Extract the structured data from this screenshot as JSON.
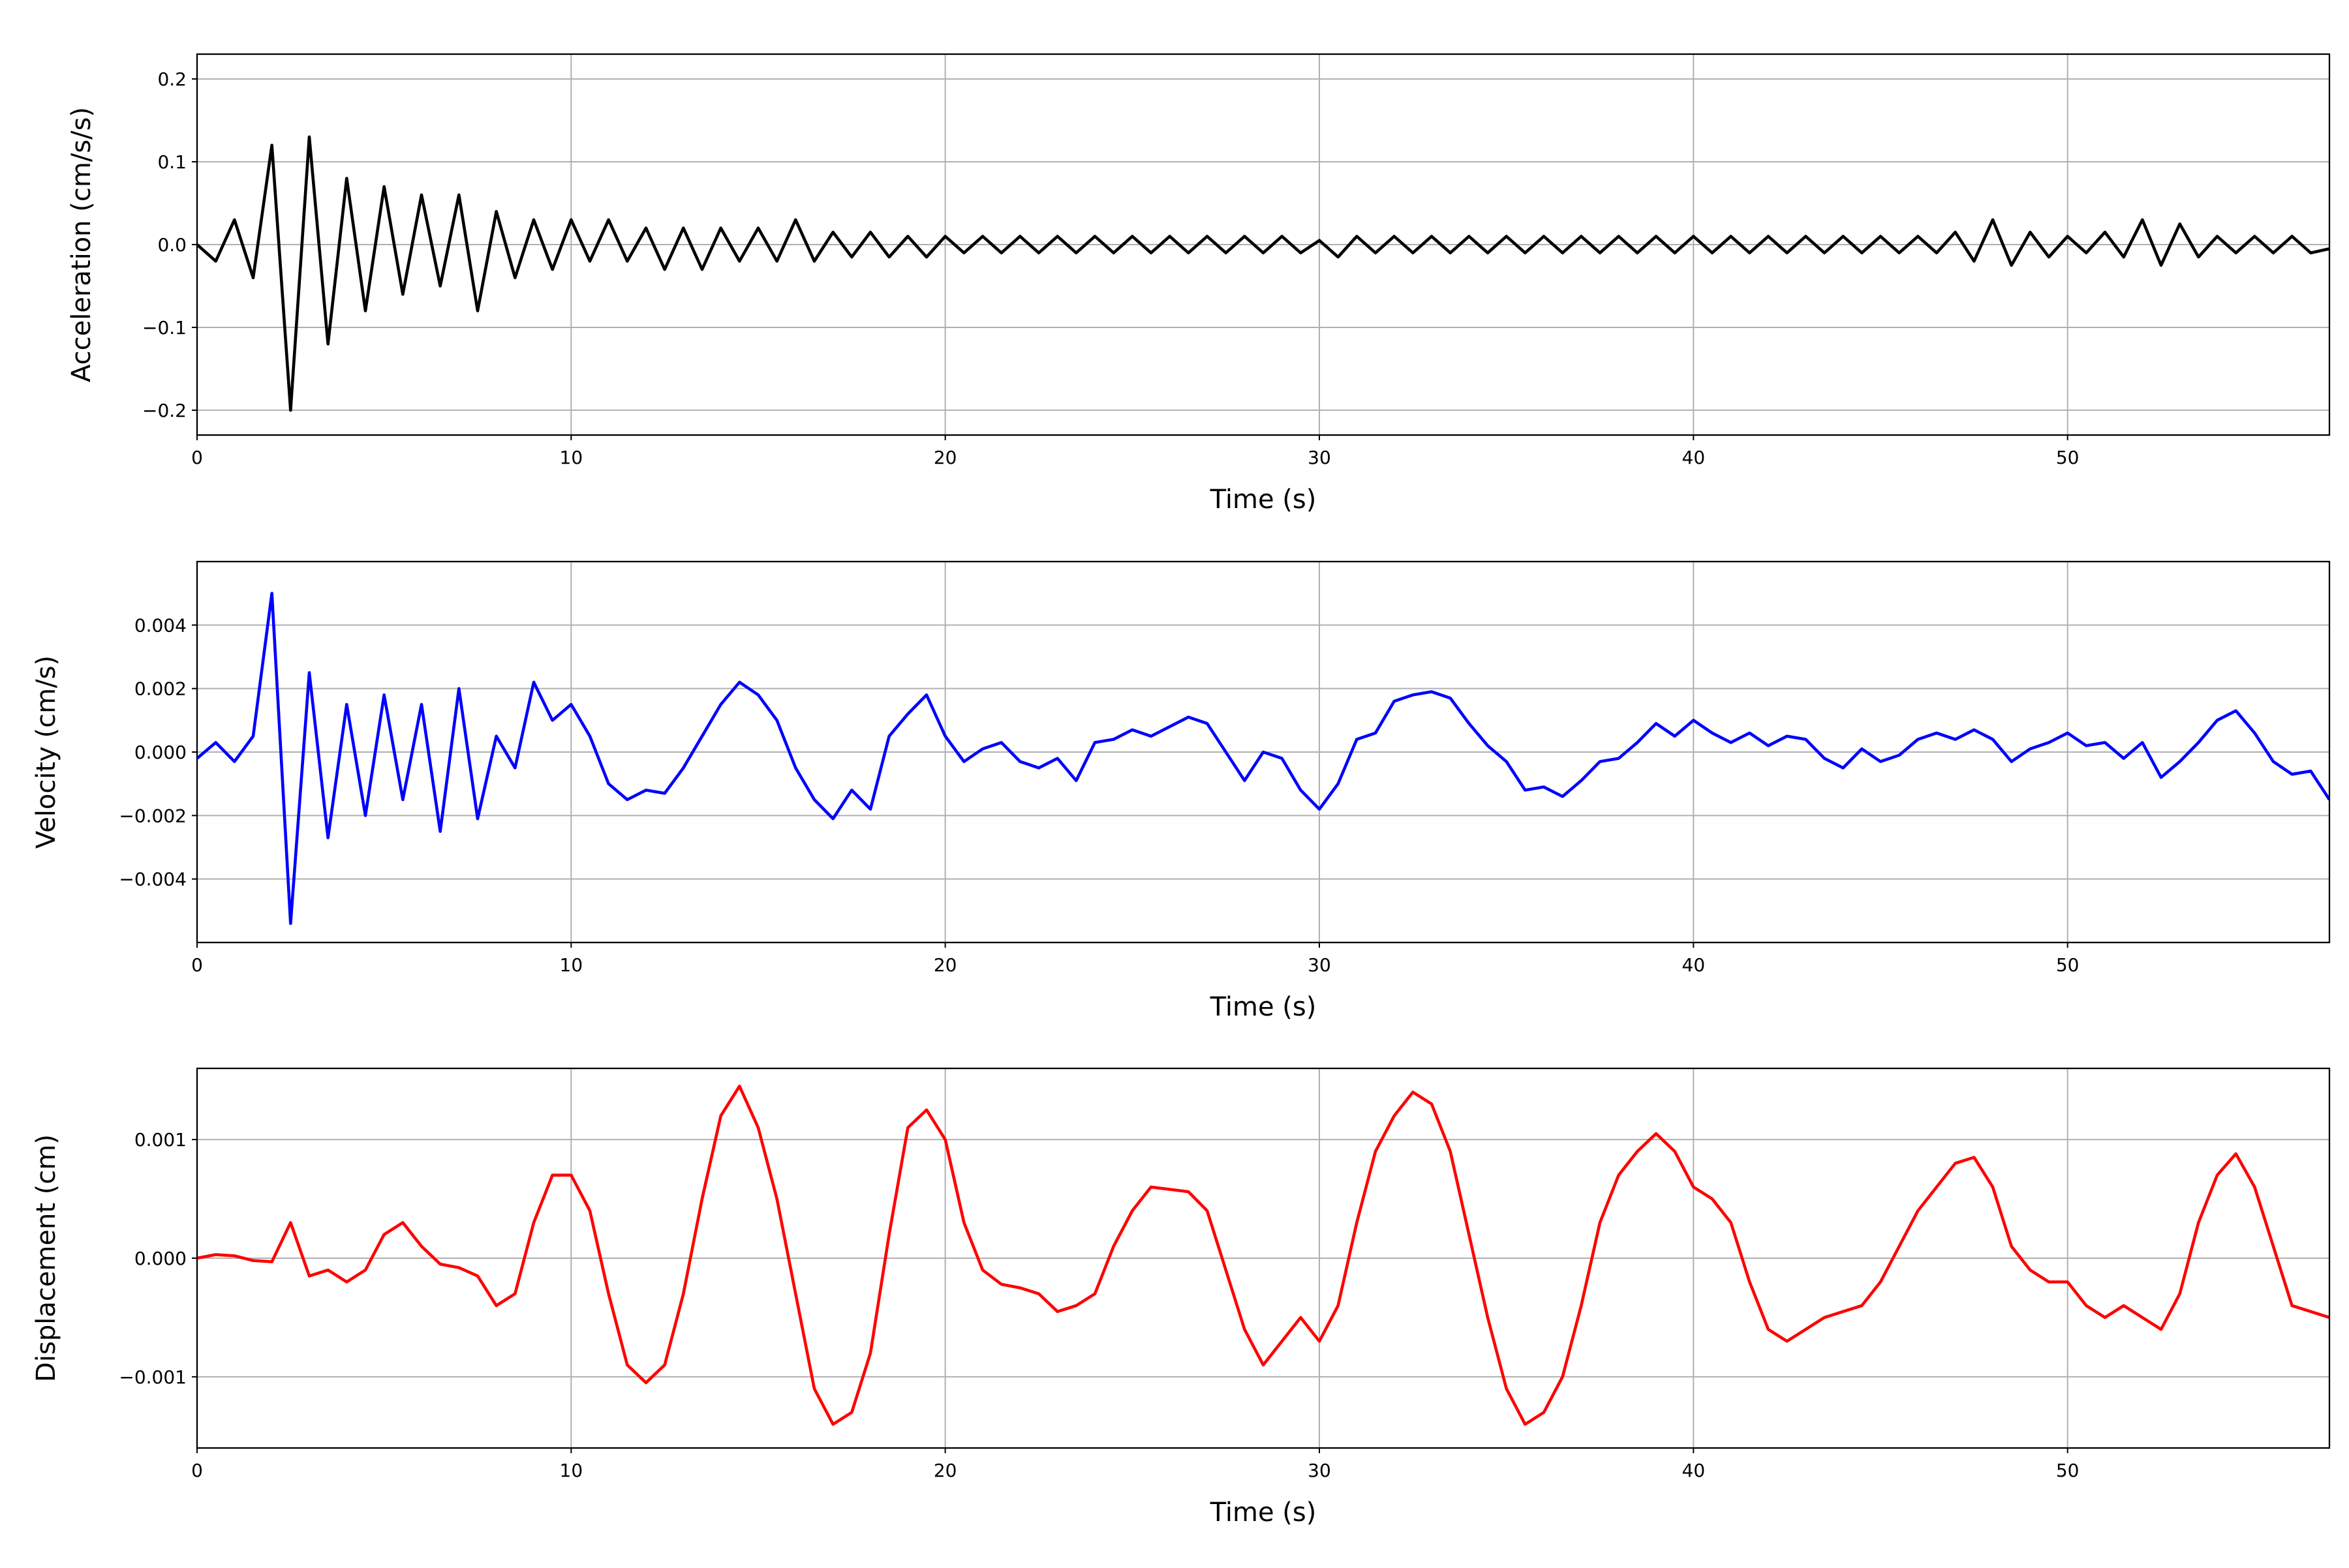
{
  "chart_data": [
    {
      "type": "line",
      "xlabel": "Time (s)",
      "ylabel": "Acceleration (cm/s/s)",
      "grid": true,
      "xlim": [
        0,
        57
      ],
      "ylim": [
        -0.23,
        0.23
      ],
      "xticks": [
        0,
        10,
        20,
        30,
        40,
        50
      ],
      "yticks": [
        {
          "value": -0.2,
          "label": "−0.2"
        },
        {
          "value": -0.1,
          "label": "−0.1"
        },
        {
          "value": 0,
          "label": "0.0"
        },
        {
          "value": 0.1,
          "label": "0.1"
        },
        {
          "value": 0.2,
          "label": "0.2"
        }
      ],
      "x": [
        0,
        0.5,
        1,
        1.5,
        2,
        2.5,
        3,
        3.5,
        4,
        4.5,
        5,
        5.5,
        6,
        6.5,
        7,
        7.5,
        8,
        8.5,
        9,
        9.5,
        10,
        10.5,
        11,
        11.5,
        12,
        12.5,
        13,
        13.5,
        14,
        14.5,
        15,
        15.5,
        16,
        16.5,
        17,
        17.5,
        18,
        18.5,
        19,
        19.5,
        20,
        20.5,
        21,
        21.5,
        22,
        22.5,
        23,
        23.5,
        24,
        24.5,
        25,
        25.5,
        26,
        26.5,
        27,
        27.5,
        28,
        28.5,
        29,
        29.5,
        30,
        30.5,
        31,
        31.5,
        32,
        32.5,
        33,
        33.5,
        34,
        34.5,
        35,
        35.5,
        36,
        36.5,
        37,
        37.5,
        38,
        38.5,
        39,
        39.5,
        40,
        40.5,
        41,
        41.5,
        42,
        42.5,
        43,
        43.5,
        44,
        44.5,
        45,
        45.5,
        46,
        46.5,
        47,
        47.5,
        48,
        48.5,
        49,
        49.5,
        50,
        50.5,
        51,
        51.5,
        52,
        52.5,
        53,
        53.5,
        54,
        54.5,
        55,
        55.5,
        56,
        56.5,
        57
      ],
      "series": [
        {
          "color": "#000000",
          "values": [
            0,
            -0.02,
            0.03,
            -0.04,
            0.12,
            -0.2,
            0.13,
            -0.12,
            0.08,
            -0.08,
            0.07,
            -0.06,
            0.06,
            -0.05,
            0.06,
            -0.08,
            0.04,
            -0.04,
            0.03,
            -0.03,
            0.03,
            -0.02,
            0.03,
            -0.02,
            0.02,
            -0.03,
            0.02,
            -0.03,
            0.02,
            -0.02,
            0.02,
            -0.02,
            0.03,
            -0.02,
            0.015,
            -0.015,
            0.015,
            -0.015,
            0.01,
            -0.015,
            0.01,
            -0.01,
            0.01,
            -0.01,
            0.01,
            -0.01,
            0.01,
            -0.01,
            0.01,
            -0.01,
            0.01,
            -0.01,
            0.01,
            -0.01,
            0.01,
            -0.01,
            0.01,
            -0.01,
            0.01,
            -0.01,
            0.005,
            -0.015,
            0.01,
            -0.01,
            0.01,
            -0.01,
            0.01,
            -0.01,
            0.01,
            -0.01,
            0.01,
            -0.01,
            0.01,
            -0.01,
            0.01,
            -0.01,
            0.01,
            -0.01,
            0.01,
            -0.01,
            0.01,
            -0.01,
            0.01,
            -0.01,
            0.01,
            -0.01,
            0.01,
            -0.01,
            0.01,
            -0.01,
            0.01,
            -0.01,
            0.01,
            -0.01,
            0.015,
            -0.02,
            0.03,
            -0.025,
            0.015,
            -0.015,
            0.01,
            -0.01,
            0.015,
            -0.015,
            0.03,
            -0.025,
            0.025,
            -0.015,
            0.01,
            -0.01,
            0.01,
            -0.01,
            0.01,
            -0.01,
            -0.005
          ]
        }
      ]
    },
    {
      "type": "line",
      "xlabel": "Time (s)",
      "ylabel": "Velocity (cm/s)",
      "grid": true,
      "xlim": [
        0,
        57
      ],
      "ylim": [
        -0.006,
        0.006
      ],
      "xticks": [
        0,
        10,
        20,
        30,
        40,
        50
      ],
      "yticks": [
        {
          "value": -0.004,
          "label": "−0.004"
        },
        {
          "value": -0.002,
          "label": "−0.002"
        },
        {
          "value": 0,
          "label": "0.000"
        },
        {
          "value": 0.002,
          "label": "0.002"
        },
        {
          "value": 0.004,
          "label": "0.004"
        }
      ],
      "x": [
        0,
        0.5,
        1,
        1.5,
        2,
        2.5,
        3,
        3.5,
        4,
        4.5,
        5,
        5.5,
        6,
        6.5,
        7,
        7.5,
        8,
        8.5,
        9,
        9.5,
        10,
        10.5,
        11,
        11.5,
        12,
        12.5,
        13,
        13.5,
        14,
        14.5,
        15,
        15.5,
        16,
        16.5,
        17,
        17.5,
        18,
        18.5,
        19,
        19.5,
        20,
        20.5,
        21,
        21.5,
        22,
        22.5,
        23,
        23.5,
        24,
        24.5,
        25,
        25.5,
        26,
        26.5,
        27,
        27.5,
        28,
        28.5,
        29,
        29.5,
        30,
        30.5,
        31,
        31.5,
        32,
        32.5,
        33,
        33.5,
        34,
        34.5,
        35,
        35.5,
        36,
        36.5,
        37,
        37.5,
        38,
        38.5,
        39,
        39.5,
        40,
        40.5,
        41,
        41.5,
        42,
        42.5,
        43,
        43.5,
        44,
        44.5,
        45,
        45.5,
        46,
        46.5,
        47,
        47.5,
        48,
        48.5,
        49,
        49.5,
        50,
        50.5,
        51,
        51.5,
        52,
        52.5,
        53,
        53.5,
        54,
        54.5,
        55,
        55.5,
        56,
        56.5,
        57
      ],
      "series": [
        {
          "color": "#0000ff",
          "values": [
            -0.0002,
            0.0003,
            -0.0003,
            0.0005,
            0.005,
            -0.0054,
            0.0025,
            -0.0027,
            0.0015,
            -0.002,
            0.0018,
            -0.0015,
            0.0015,
            -0.0025,
            0.002,
            -0.0021,
            0.0005,
            -0.0005,
            0.0022,
            0.001,
            0.0015,
            0.0005,
            -0.001,
            -0.0015,
            -0.0012,
            -0.0013,
            -0.0005,
            0.0005,
            0.0015,
            0.0022,
            0.0018,
            0.001,
            -0.0005,
            -0.0015,
            -0.0021,
            -0.0012,
            -0.0018,
            0.0005,
            0.0012,
            0.0018,
            0.0005,
            -0.0003,
            0.0001,
            0.0003,
            -0.0003,
            -0.0005,
            -0.0002,
            -0.0009,
            0.0003,
            0.0004,
            0.0007,
            0.0005,
            0.0008,
            0.0011,
            0.0009,
            0,
            -0.0009,
            0,
            -0.0002,
            -0.0012,
            -0.0018,
            -0.001,
            0.0004,
            0.0006,
            0.0016,
            0.0018,
            0.0019,
            0.0017,
            0.0009,
            0.0002,
            -0.0003,
            -0.0012,
            -0.0011,
            -0.0014,
            -0.0009,
            -0.0003,
            -0.0002,
            0.0003,
            0.0009,
            0.0005,
            0.001,
            0.0006,
            0.0003,
            0.0006,
            0.0002,
            0.0005,
            0.0004,
            -0.0002,
            -0.0005,
            0.0001,
            -0.0003,
            -0.0001,
            0.0004,
            0.0006,
            0.0004,
            0.0007,
            0.0004,
            -0.0003,
            0.0001,
            0.0003,
            0.0006,
            0.0002,
            0.0003,
            -0.0002,
            0.0003,
            -0.0008,
            -0.0003,
            0.0003,
            0.001,
            0.0013,
            0.0006,
            -0.0003,
            -0.0007,
            -0.0006,
            -0.0015
          ]
        }
      ]
    },
    {
      "type": "line",
      "xlabel": "Time (s)",
      "ylabel": "Displacement (cm)",
      "grid": true,
      "xlim": [
        0,
        57
      ],
      "ylim": [
        -0.0016,
        0.0016
      ],
      "xticks": [
        0,
        10,
        20,
        30,
        40,
        50
      ],
      "yticks": [
        {
          "value": -0.001,
          "label": "−0.001"
        },
        {
          "value": 0,
          "label": "0.000"
        },
        {
          "value": 0.001,
          "label": "0.001"
        }
      ],
      "x": [
        0,
        0.5,
        1,
        1.5,
        2,
        2.5,
        3,
        3.5,
        4,
        4.5,
        5,
        5.5,
        6,
        6.5,
        7,
        7.5,
        8,
        8.5,
        9,
        9.5,
        10,
        10.5,
        11,
        11.5,
        12,
        12.5,
        13,
        13.5,
        14,
        14.5,
        15,
        15.5,
        16,
        16.5,
        17,
        17.5,
        18,
        18.5,
        19,
        19.5,
        20,
        20.5,
        21,
        21.5,
        22,
        22.5,
        23,
        23.5,
        24,
        24.5,
        25,
        25.5,
        26,
        26.5,
        27,
        27.5,
        28,
        28.5,
        29,
        29.5,
        30,
        30.5,
        31,
        31.5,
        32,
        32.5,
        33,
        33.5,
        34,
        34.5,
        35,
        35.5,
        36,
        36.5,
        37,
        37.5,
        38,
        38.5,
        39,
        39.5,
        40,
        40.5,
        41,
        41.5,
        42,
        42.5,
        43,
        43.5,
        44,
        44.5,
        45,
        45.5,
        46,
        46.5,
        47,
        47.5,
        48,
        48.5,
        49,
        49.5,
        50,
        50.5,
        51,
        51.5,
        52,
        52.5,
        53,
        53.5,
        54,
        54.5,
        55,
        55.5,
        56,
        56.5,
        57
      ],
      "series": [
        {
          "color": "#ff0000",
          "values": [
            0,
            3e-05,
            2e-05,
            -2e-05,
            -3e-05,
            0.0003,
            -0.00015,
            -0.0001,
            -0.0002,
            -0.0001,
            0.0002,
            0.0003,
            0.0001,
            -5e-05,
            -8e-05,
            -0.00015,
            -0.0004,
            -0.0003,
            0.0003,
            0.0007,
            0.0007,
            0.0004,
            -0.0003,
            -0.0009,
            -0.00105,
            -0.0009,
            -0.0003,
            0.0005,
            0.0012,
            0.00145,
            0.0011,
            0.0005,
            -0.0003,
            -0.0011,
            -0.0014,
            -0.0013,
            -0.0008,
            0.0002,
            0.0011,
            0.00125,
            0.001,
            0.0003,
            -0.0001,
            -0.00022,
            -0.00025,
            -0.0003,
            -0.00045,
            -0.0004,
            -0.0003,
            0.0001,
            0.0004,
            0.0006,
            0.00058,
            0.00056,
            0.0004,
            -0.0001,
            -0.0006,
            -0.0009,
            -0.0007,
            -0.0005,
            -0.0007,
            -0.0004,
            0.0003,
            0.0009,
            0.0012,
            0.0014,
            0.0013,
            0.0009,
            0.0002,
            -0.0005,
            -0.0011,
            -0.0014,
            -0.0013,
            -0.001,
            -0.0004,
            0.0003,
            0.0007,
            0.0009,
            0.00105,
            0.0009,
            0.0006,
            0.0005,
            0.0003,
            -0.0002,
            -0.0006,
            -0.0007,
            -0.0006,
            -0.0005,
            -0.00045,
            -0.0004,
            -0.0002,
            0.0001,
            0.0004,
            0.0006,
            0.0008,
            0.00085,
            0.0006,
            0.0001,
            -0.0001,
            -0.0002,
            -0.0002,
            -0.0004,
            -0.0005,
            -0.0004,
            -0.0005,
            -0.0006,
            -0.0003,
            0.0003,
            0.0007,
            0.00088,
            0.0006,
            0.0001,
            -0.0004,
            -0.00045,
            -0.0005
          ]
        }
      ]
    }
  ]
}
